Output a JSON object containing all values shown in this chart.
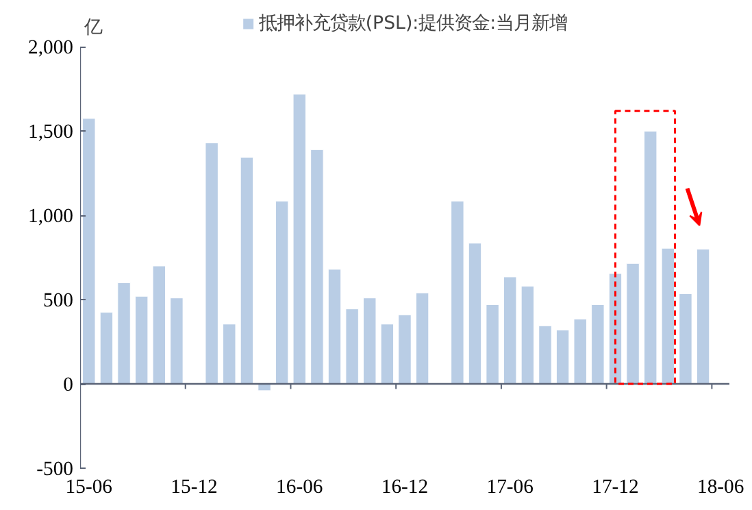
{
  "chart_data": {
    "type": "bar",
    "ylabel": "亿",
    "categories": [
      "15-06",
      null,
      null,
      null,
      null,
      null,
      "15-12",
      null,
      null,
      null,
      null,
      null,
      "16-06",
      null,
      null,
      null,
      null,
      null,
      "16-12",
      null,
      null,
      null,
      null,
      null,
      "17-06",
      null,
      null,
      null,
      null,
      null,
      "17-12",
      null,
      null,
      null,
      null,
      null,
      "18-06"
    ],
    "series": [
      {
        "name": "抵押补充贷款(PSL):提供资金:当月新增",
        "color": "#b9cde5",
        "values": [
          1575,
          425,
          600,
          520,
          700,
          510,
          null,
          1430,
          355,
          1345,
          -40,
          1085,
          1720,
          1390,
          680,
          445,
          510,
          355,
          410,
          540,
          null,
          1085,
          835,
          470,
          635,
          580,
          345,
          320,
          385,
          470,
          655,
          715,
          1500,
          805,
          535,
          800,
          null
        ]
      }
    ],
    "ylim": [
      -500,
      2000
    ],
    "yticks": [
      {
        "value": -500,
        "label": "-500"
      },
      0,
      500,
      {
        "value": 1000,
        "label": "1,000"
      },
      {
        "value": 1500,
        "label": "1,500"
      },
      {
        "value": 2000,
        "label": "2,000"
      }
    ],
    "legend": "top"
  }
}
